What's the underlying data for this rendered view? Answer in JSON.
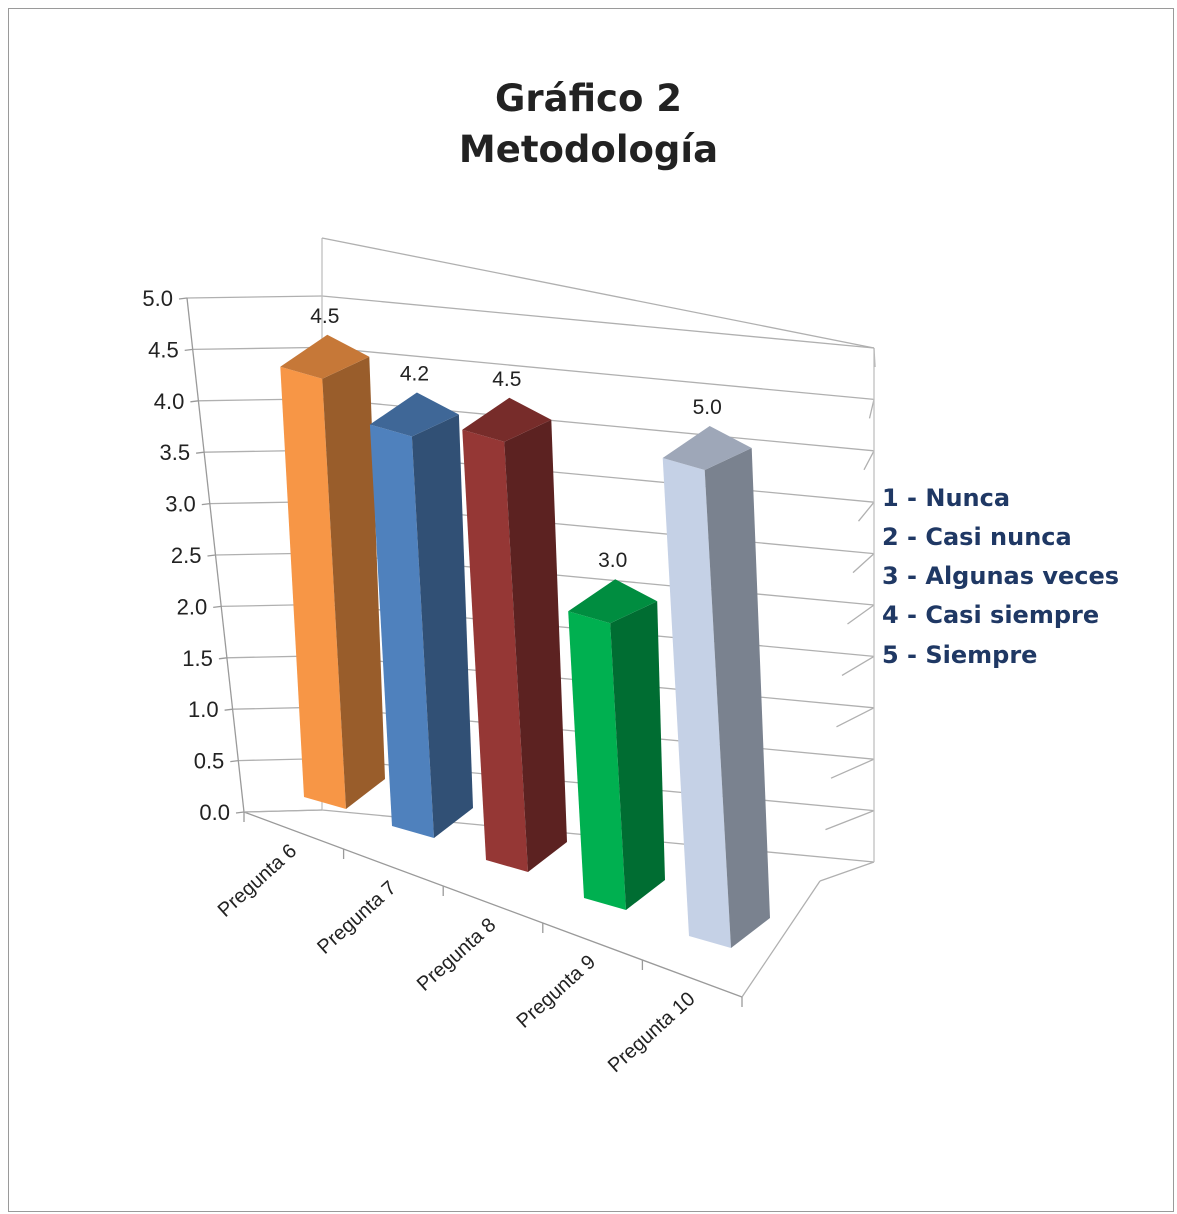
{
  "chart_data": {
    "type": "bar",
    "title": "Gráfico 2",
    "subtitle": "Metodología",
    "categories": [
      "Pregunta 6",
      "Pregunta 7",
      "Pregunta 8",
      "Pregunta 9",
      "Pregunta 10"
    ],
    "values": [
      4.5,
      4.2,
      4.5,
      3.0,
      5.0
    ],
    "data_labels": [
      "4.5",
      "4.2",
      "4.5",
      "3.0",
      "5.0"
    ],
    "colors": [
      "#f79646",
      "#4f81bd",
      "#953735",
      "#00b050",
      "#c5d1e6"
    ],
    "ylim": [
      0,
      5
    ],
    "yticks": [
      "0.0",
      "0.5",
      "1.0",
      "1.5",
      "2.0",
      "2.5",
      "3.0",
      "3.5",
      "4.0",
      "4.5",
      "5.0"
    ],
    "grid": true,
    "style": "3d-column",
    "legend": {
      "placement": "right",
      "items": [
        "1 - Nunca",
        "2 - Casi nunca",
        "3 - Algunas veces",
        "4 - Casi siempre",
        "5 - Siempre"
      ],
      "color": "#1f3864"
    }
  }
}
